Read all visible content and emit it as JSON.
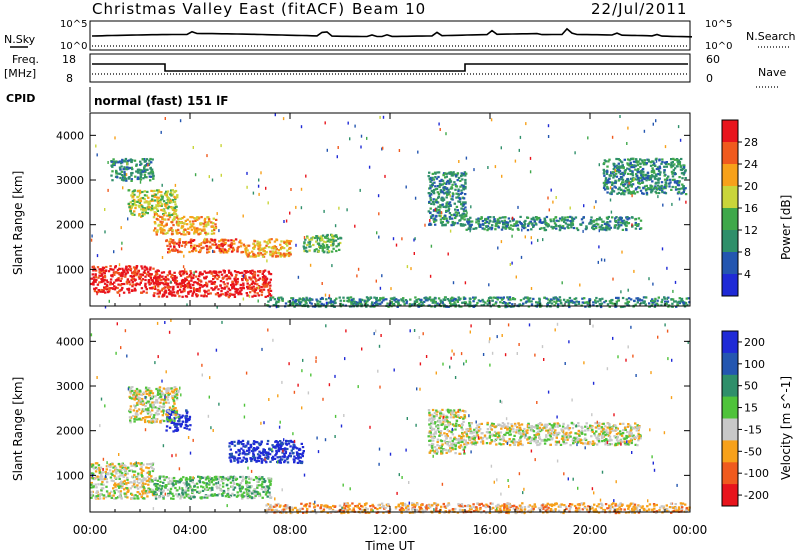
{
  "header": {
    "title": "Christmas Valley East (fitACF)",
    "beam": "Beam 10",
    "date": "22/Jul/2011"
  },
  "top_panels": {
    "nsky_label": "N.Sky",
    "nsearch_label": "N.Search",
    "nsky_ticks": [
      "10^5",
      "10^0"
    ],
    "nsearch_ticks": [
      "10^5",
      "10^0"
    ],
    "freq_label": "Freq.",
    "freq_unit": "[MHz]",
    "freq_ticks": [
      "18",
      "8"
    ],
    "nave_label": "Nave",
    "nave_ticks": [
      "60",
      "0"
    ],
    "cpid_label": "CPID",
    "cpid_value": "normal (fast) 151 lF"
  },
  "chart_data": [
    {
      "type": "heatmap",
      "name": "power",
      "ylabel": "Slant Range [km]",
      "xlabel": "",
      "ylim": [
        180,
        4500
      ],
      "xlim": [
        0,
        24
      ],
      "ytick_labels": [
        "1000",
        "2000",
        "3000",
        "4000"
      ],
      "colorbar": {
        "label": "Power [dB]",
        "ticks": [
          "4",
          "8",
          "12",
          "16",
          "20",
          "24",
          "28"
        ],
        "colors": [
          "#1f2ad6",
          "#2456b0",
          "#2f8f6a",
          "#3fa84a",
          "#c9d53a",
          "#f7a11a",
          "#f05a1e",
          "#e8141c"
        ]
      },
      "echo_regions": [
        {
          "t": [
            0.8,
            2.5
          ],
          "r": [
            3000,
            3500
          ],
          "level": 2
        },
        {
          "t": [
            1.5,
            3.5
          ],
          "r": [
            2200,
            2800
          ],
          "level": 4
        },
        {
          "t": [
            2.5,
            5.0
          ],
          "r": [
            1800,
            2200
          ],
          "level": 5
        },
        {
          "t": [
            3.0,
            6.0
          ],
          "r": [
            1400,
            1700
          ],
          "level": 6
        },
        {
          "t": [
            6.0,
            8.0
          ],
          "r": [
            1300,
            1700
          ],
          "level": 5
        },
        {
          "t": [
            8.5,
            10.0
          ],
          "r": [
            1400,
            1800
          ],
          "level": 3
        },
        {
          "t": [
            0.0,
            2.5
          ],
          "r": [
            500,
            1100
          ],
          "level": 7
        },
        {
          "t": [
            2.5,
            7.2
          ],
          "r": [
            400,
            1000
          ],
          "level": 7
        },
        {
          "t": [
            7.0,
            24.0
          ],
          "r": [
            180,
            400
          ],
          "level": 2
        },
        {
          "t": [
            13.5,
            15.0
          ],
          "r": [
            2000,
            3200
          ],
          "level": 2
        },
        {
          "t": [
            15.0,
            22.0
          ],
          "r": [
            1900,
            2200
          ],
          "level": 2
        },
        {
          "t": [
            20.5,
            23.8
          ],
          "r": [
            2700,
            3500
          ],
          "level": 2
        }
      ]
    },
    {
      "type": "heatmap",
      "name": "velocity",
      "ylabel": "Slant Range [km]",
      "xlabel": "Time UT",
      "ylim": [
        180,
        4500
      ],
      "xlim": [
        0,
        24
      ],
      "ytick_labels": [
        "1000",
        "2000",
        "3000",
        "4000"
      ],
      "xtick_labels": [
        "00:00",
        "04:00",
        "08:00",
        "12:00",
        "16:00",
        "20:00",
        "00:00"
      ],
      "colorbar": {
        "label": "Velocity [m s^-1]",
        "ticks": [
          "200",
          "100",
          "50",
          "15",
          "-15",
          "-50",
          "-100",
          "-200"
        ],
        "colors": [
          "#1f2ad6",
          "#2456b0",
          "#2f8f6a",
          "#4fc33a",
          "#c8c8c8",
          "#f7a11a",
          "#f05a1e",
          "#e8141c"
        ]
      },
      "echo_regions": [
        {
          "t": [
            0.0,
            2.5
          ],
          "r": [
            500,
            1300
          ],
          "level": 4
        },
        {
          "t": [
            2.5,
            7.2
          ],
          "r": [
            500,
            1000
          ],
          "level": 3
        },
        {
          "t": [
            3.0,
            4.0
          ],
          "r": [
            2000,
            2500
          ],
          "level": 0
        },
        {
          "t": [
            5.5,
            8.5
          ],
          "r": [
            1300,
            1800
          ],
          "level": 0
        },
        {
          "t": [
            1.5,
            3.5
          ],
          "r": [
            2200,
            3000
          ],
          "level": 4
        },
        {
          "t": [
            13.5,
            15.0
          ],
          "r": [
            1500,
            2500
          ],
          "level": 4
        },
        {
          "t": [
            15.0,
            22.0
          ],
          "r": [
            1700,
            2200
          ],
          "level": 4
        },
        {
          "t": [
            7.0,
            24.0
          ],
          "r": [
            180,
            400
          ],
          "level": 5
        }
      ]
    }
  ]
}
